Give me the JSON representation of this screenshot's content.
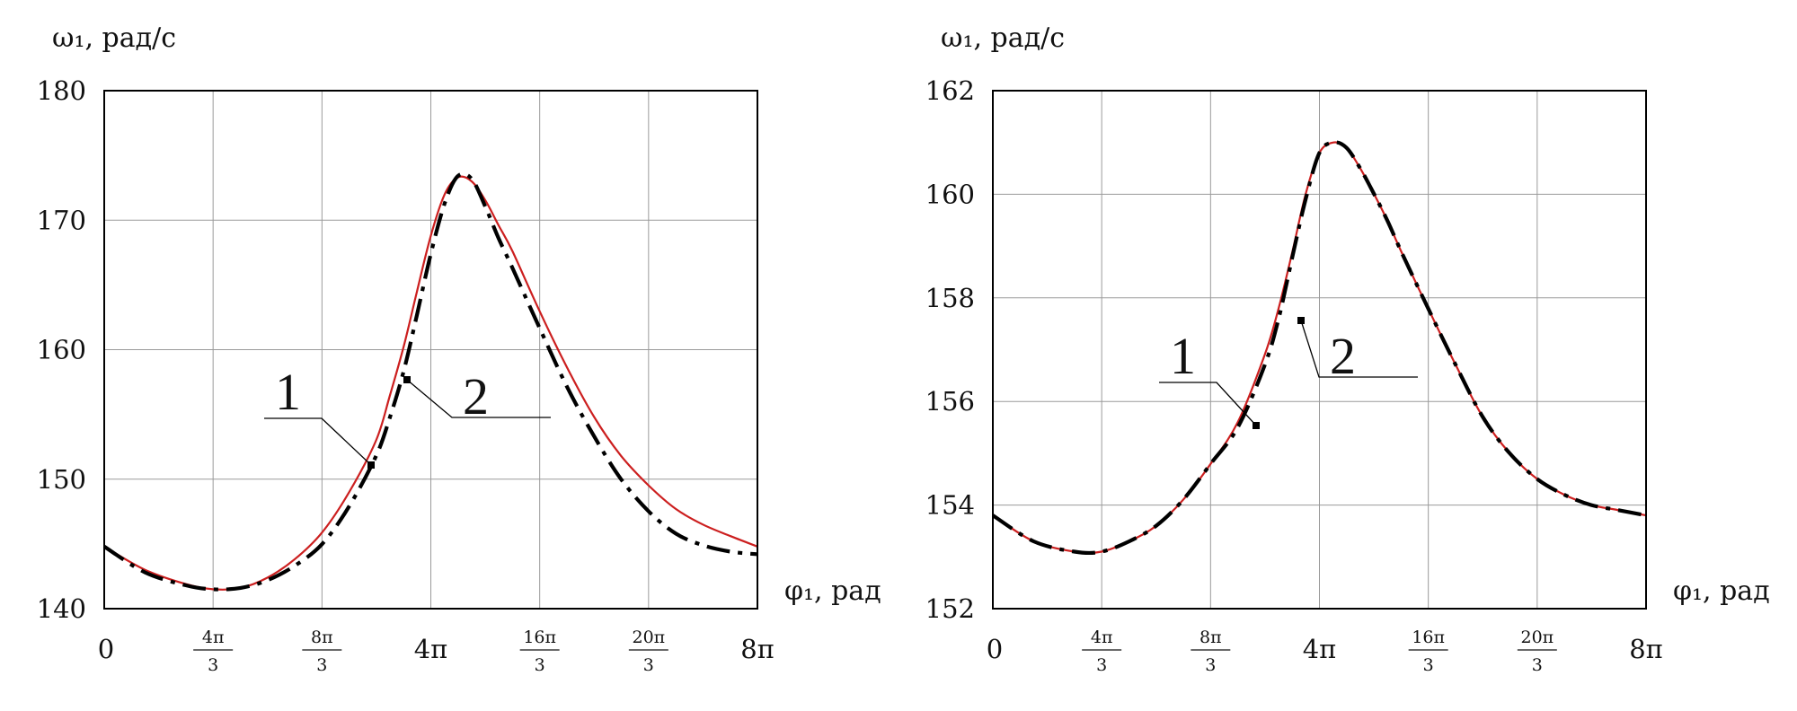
{
  "chart_data": [
    {
      "type": "line",
      "ylabel": "ω₁, рад/с",
      "xlabel": "φ₁, рад",
      "ylim": [
        140,
        180
      ],
      "yticks": [
        "140",
        "150",
        "160",
        "170",
        "180"
      ],
      "xlim_over_pi": [
        0,
        8
      ],
      "xticks": [
        {
          "num": "0",
          "den": ""
        },
        {
          "num": "4π",
          "den": "3"
        },
        {
          "num": "8π",
          "den": "3"
        },
        {
          "num": "4π",
          "den": ""
        },
        {
          "num": "16π",
          "den": "3"
        },
        {
          "num": "20π",
          "den": "3"
        },
        {
          "num": "8π",
          "den": ""
        }
      ],
      "grid": true,
      "curve_labels": [
        "1",
        "2"
      ],
      "series": [
        {
          "name": "1",
          "color": "#cc1f1f",
          "x_over_pi": [
            0,
            0.5,
            1,
            1.33,
            1.67,
            2,
            2.33,
            2.67,
            3,
            3.33,
            3.5,
            3.67,
            3.83,
            4,
            4.17,
            4.33,
            4.5,
            4.67,
            4.83,
            5,
            5.33,
            5.67,
            6,
            6.33,
            6.67,
            7,
            7.33,
            7.67,
            8
          ],
          "y": [
            144.8,
            143.0,
            141.9,
            141.5,
            141.6,
            142.4,
            143.8,
            145.9,
            149.0,
            153.0,
            156.5,
            160.3,
            164.5,
            168.8,
            172.0,
            173.3,
            173.0,
            171.5,
            169.6,
            167.6,
            163.0,
            158.6,
            154.8,
            151.8,
            149.5,
            147.7,
            146.5,
            145.6,
            144.8
          ]
        },
        {
          "name": "2",
          "color": "#000000",
          "x_over_pi": [
            0,
            0.5,
            1,
            1.33,
            1.67,
            2,
            2.33,
            2.67,
            3,
            3.33,
            3.5,
            3.67,
            3.83,
            4,
            4.17,
            4.33,
            4.5,
            4.67,
            4.83,
            5,
            5.33,
            5.67,
            6,
            6.33,
            6.67,
            7,
            7.33,
            7.67,
            8
          ],
          "y": [
            144.8,
            142.8,
            141.8,
            141.5,
            141.6,
            142.2,
            143.3,
            145.0,
            147.9,
            151.8,
            154.8,
            158.4,
            162.7,
            167.4,
            171.3,
            173.4,
            173.2,
            171.0,
            168.6,
            166.3,
            161.7,
            157.1,
            153.3,
            150.0,
            147.5,
            145.8,
            144.9,
            144.4,
            144.2
          ]
        }
      ]
    },
    {
      "type": "line",
      "ylabel": "ω₁, рад/с",
      "xlabel": "φ₁, рад",
      "ylim": [
        152,
        162
      ],
      "yticks": [
        "152",
        "154",
        "156",
        "158",
        "160",
        "162"
      ],
      "xlim_over_pi": [
        0,
        8
      ],
      "xticks": [
        {
          "num": "0",
          "den": ""
        },
        {
          "num": "4π",
          "den": "3"
        },
        {
          "num": "8π",
          "den": "3"
        },
        {
          "num": "4π",
          "den": ""
        },
        {
          "num": "16π",
          "den": "3"
        },
        {
          "num": "20π",
          "den": "3"
        },
        {
          "num": "8π",
          "den": ""
        }
      ],
      "grid": true,
      "curve_labels": [
        "1",
        "2"
      ],
      "series": [
        {
          "name": "1",
          "color": "#cc1f1f",
          "x_over_pi": [
            0,
            0.5,
            1,
            1.33,
            1.67,
            2,
            2.33,
            2.67,
            3,
            3.33,
            3.5,
            3.67,
            3.83,
            4,
            4.17,
            4.33,
            4.5,
            4.67,
            4.83,
            5,
            5.33,
            5.67,
            6,
            6.33,
            6.67,
            7,
            7.33,
            7.67,
            8
          ],
          "y": [
            153.8,
            153.3,
            153.1,
            153.1,
            153.3,
            153.6,
            154.1,
            154.8,
            155.6,
            156.9,
            157.8,
            158.9,
            160.0,
            160.8,
            161.0,
            160.9,
            160.5,
            160.0,
            159.5,
            158.9,
            157.8,
            156.7,
            155.7,
            155.0,
            154.5,
            154.2,
            154.0,
            153.9,
            153.8
          ]
        },
        {
          "name": "2",
          "color": "#000000",
          "x_over_pi": [
            0,
            0.5,
            1,
            1.33,
            1.67,
            2,
            2.33,
            2.67,
            3,
            3.33,
            3.5,
            3.67,
            3.83,
            4,
            4.17,
            4.33,
            4.5,
            4.67,
            4.83,
            5,
            5.33,
            5.67,
            6,
            6.33,
            6.67,
            7,
            7.33,
            7.67,
            8
          ],
          "y": [
            153.8,
            153.3,
            153.1,
            153.1,
            153.3,
            153.6,
            154.1,
            154.8,
            155.5,
            156.7,
            157.6,
            158.8,
            159.9,
            160.8,
            161.0,
            160.9,
            160.5,
            160.0,
            159.5,
            158.9,
            157.8,
            156.7,
            155.7,
            155.0,
            154.5,
            154.2,
            154.0,
            153.9,
            153.8
          ]
        }
      ]
    }
  ]
}
